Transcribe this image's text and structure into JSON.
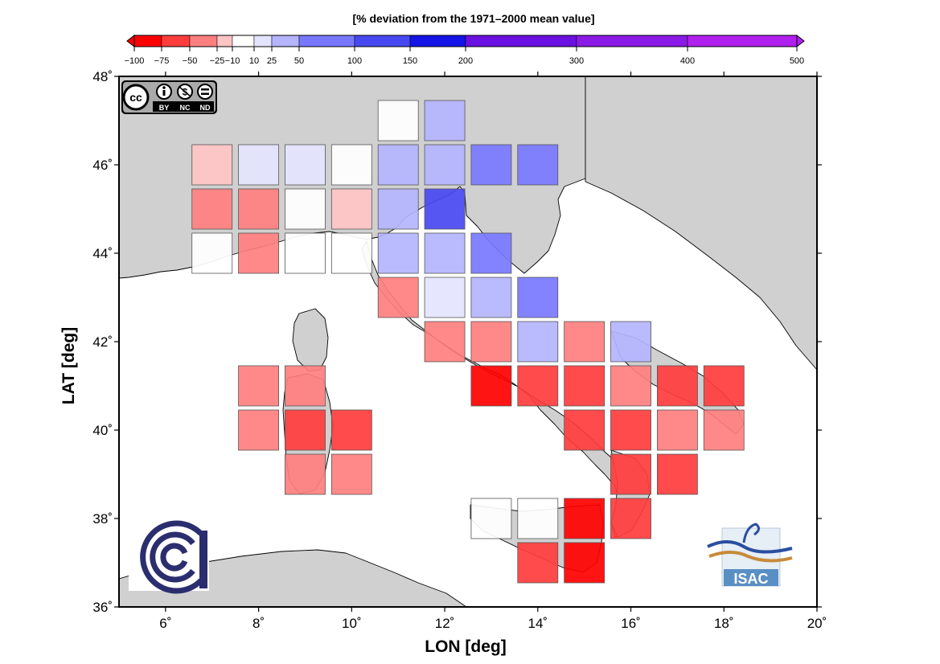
{
  "colorbar": {
    "title": "[% deviation from the 1971–2000 mean value]",
    "ticks": [
      "−100",
      "−75",
      "−50",
      "−25",
      "−10",
      "10",
      "25",
      "50",
      "100",
      "150",
      "200",
      "300",
      "400",
      "500"
    ],
    "tick_values": [
      -100,
      -75,
      -50,
      -25,
      -10,
      10,
      25,
      50,
      100,
      150,
      200,
      300,
      400,
      500
    ],
    "bins": [
      {
        "from": -100,
        "to": -75,
        "color": "#ff0000"
      },
      {
        "from": -75,
        "to": -50,
        "color": "#ff3c3c"
      },
      {
        "from": -50,
        "to": -25,
        "color": "#ff7f7f"
      },
      {
        "from": -25,
        "to": -10,
        "color": "#ffc4c4"
      },
      {
        "from": -10,
        "to": 10,
        "color": "#ffffff"
      },
      {
        "from": 10,
        "to": 25,
        "color": "#e4e4ff"
      },
      {
        "from": 25,
        "to": 50,
        "color": "#b4b4ff"
      },
      {
        "from": 50,
        "to": 100,
        "color": "#7878ff"
      },
      {
        "from": 100,
        "to": 150,
        "color": "#4848f2"
      },
      {
        "from": 150,
        "to": 200,
        "color": "#1414e6"
      },
      {
        "from": 200,
        "to": 300,
        "color": "#6a10e0"
      },
      {
        "from": 300,
        "to": 400,
        "color": "#8c1ae6"
      },
      {
        "from": 400,
        "to": 500,
        "color": "#b020ee"
      }
    ],
    "bin_colors": [
      "#ff0000",
      "#ff3c3c",
      "#ff7f7f",
      "#ffc4c4",
      "#ffffff",
      "#e4e4ff",
      "#b4b4ff",
      "#7878ff",
      "#4848f2",
      "#1414e6",
      "#6a10e0",
      "#8c1ae6",
      "#b020ee"
    ]
  },
  "axes": {
    "x_title": "LON [deg]",
    "y_title": "LAT [deg]",
    "x_labels": [
      "6˚",
      "8˚",
      "10˚",
      "12˚",
      "14˚",
      "16˚",
      "18˚",
      "20˚"
    ],
    "y_labels": [
      "36˚",
      "38˚",
      "40˚",
      "42˚",
      "44˚",
      "46˚",
      "48˚"
    ],
    "x_values": [
      6,
      8,
      10,
      12,
      14,
      16,
      18,
      20
    ],
    "y_values": [
      36,
      38,
      40,
      42,
      44,
      46,
      48
    ],
    "lon_range": [
      5,
      20
    ],
    "lat_range": [
      36,
      48
    ]
  },
  "grid_cells": [
    {
      "lon": 11,
      "lat": 47,
      "color": "#ffffff"
    },
    {
      "lon": 12,
      "lat": 47,
      "color": "#b4b4ff"
    },
    {
      "lon": 7,
      "lat": 46,
      "color": "#ffc4c4"
    },
    {
      "lon": 8,
      "lat": 46,
      "color": "#e4e4ff"
    },
    {
      "lon": 9,
      "lat": 46,
      "color": "#e4e4ff"
    },
    {
      "lon": 10,
      "lat": 46,
      "color": "#ffffff"
    },
    {
      "lon": 11,
      "lat": 46,
      "color": "#b4b4ff"
    },
    {
      "lon": 12,
      "lat": 46,
      "color": "#b4b4ff"
    },
    {
      "lon": 13,
      "lat": 46,
      "color": "#7878ff"
    },
    {
      "lon": 14,
      "lat": 46,
      "color": "#7878ff"
    },
    {
      "lon": 7,
      "lat": 45,
      "color": "#ff7f7f"
    },
    {
      "lon": 8,
      "lat": 45,
      "color": "#ff7f7f"
    },
    {
      "lon": 9,
      "lat": 45,
      "color": "#ffffff"
    },
    {
      "lon": 10,
      "lat": 45,
      "color": "#ffc4c4"
    },
    {
      "lon": 11,
      "lat": 45,
      "color": "#b4b4ff"
    },
    {
      "lon": 12,
      "lat": 45,
      "color": "#4848f2"
    },
    {
      "lon": 7,
      "lat": 44,
      "color": "#ffffff"
    },
    {
      "lon": 8,
      "lat": 44,
      "color": "#ff7f7f"
    },
    {
      "lon": 9,
      "lat": 44,
      "color": "#ffffff"
    },
    {
      "lon": 10,
      "lat": 44,
      "color": "#ffffff"
    },
    {
      "lon": 11,
      "lat": 44,
      "color": "#b4b4ff"
    },
    {
      "lon": 12,
      "lat": 44,
      "color": "#b4b4ff"
    },
    {
      "lon": 13,
      "lat": 44,
      "color": "#7878ff"
    },
    {
      "lon": 11,
      "lat": 43,
      "color": "#ff7f7f"
    },
    {
      "lon": 12,
      "lat": 43,
      "color": "#e4e4ff"
    },
    {
      "lon": 13,
      "lat": 43,
      "color": "#b4b4ff"
    },
    {
      "lon": 14,
      "lat": 43,
      "color": "#7878ff"
    },
    {
      "lon": 12,
      "lat": 42,
      "color": "#ff7f7f"
    },
    {
      "lon": 13,
      "lat": 42,
      "color": "#ff7f7f"
    },
    {
      "lon": 14,
      "lat": 42,
      "color": "#b4b4ff"
    },
    {
      "lon": 15,
      "lat": 42,
      "color": "#ff7f7f"
    },
    {
      "lon": 16,
      "lat": 42,
      "color": "#b4b4ff"
    },
    {
      "lon": 8,
      "lat": 41,
      "color": "#ff7f7f"
    },
    {
      "lon": 9,
      "lat": 41,
      "color": "#ff7f7f"
    },
    {
      "lon": 13,
      "lat": 41,
      "color": "#ff0000"
    },
    {
      "lon": 14,
      "lat": 41,
      "color": "#ff3c3c"
    },
    {
      "lon": 15,
      "lat": 41,
      "color": "#ff3c3c"
    },
    {
      "lon": 16,
      "lat": 41,
      "color": "#ff7f7f"
    },
    {
      "lon": 17,
      "lat": 41,
      "color": "#ff3c3c"
    },
    {
      "lon": 18,
      "lat": 41,
      "color": "#ff3c3c"
    },
    {
      "lon": 8,
      "lat": 40,
      "color": "#ff7f7f"
    },
    {
      "lon": 9,
      "lat": 40,
      "color": "#ff3c3c"
    },
    {
      "lon": 10,
      "lat": 40,
      "color": "#ff3c3c"
    },
    {
      "lon": 15,
      "lat": 40,
      "color": "#ff3c3c"
    },
    {
      "lon": 16,
      "lat": 40,
      "color": "#ff3c3c"
    },
    {
      "lon": 17,
      "lat": 40,
      "color": "#ff7f7f"
    },
    {
      "lon": 18,
      "lat": 40,
      "color": "#ff7f7f"
    },
    {
      "lon": 9,
      "lat": 39,
      "color": "#ff7f7f"
    },
    {
      "lon": 10,
      "lat": 39,
      "color": "#ff7f7f"
    },
    {
      "lon": 16,
      "lat": 39,
      "color": "#ff3c3c"
    },
    {
      "lon": 17,
      "lat": 39,
      "color": "#ff3c3c"
    },
    {
      "lon": 13,
      "lat": 38,
      "color": "#ffffff"
    },
    {
      "lon": 14,
      "lat": 38,
      "color": "#ffffff"
    },
    {
      "lon": 15,
      "lat": 38,
      "color": "#ff0000"
    },
    {
      "lon": 16,
      "lat": 38,
      "color": "#ff3c3c"
    },
    {
      "lon": 14,
      "lat": 37,
      "color": "#ff3c3c"
    },
    {
      "lon": 15,
      "lat": 37,
      "color": "#ff0000"
    }
  ],
  "colors": {
    "land": "#d0d0d0",
    "sea": "#ffffff",
    "coast": "#000000",
    "cnr_logo": "#2b2e6e",
    "isac_bg": "#5a8fc4",
    "isac_wave_blue": "#2a4fa0",
    "isac_wave_orange": "#c88a3a"
  },
  "logos": {
    "cc_license": {
      "icon": "creative-commons-by-nc-nd-icon",
      "labels": [
        "BY",
        "NC",
        "ND"
      ]
    },
    "cnr": {
      "icon": "cnr-logo-icon"
    },
    "isac": {
      "icon": "isac-logo-icon",
      "text": "ISAC"
    }
  }
}
